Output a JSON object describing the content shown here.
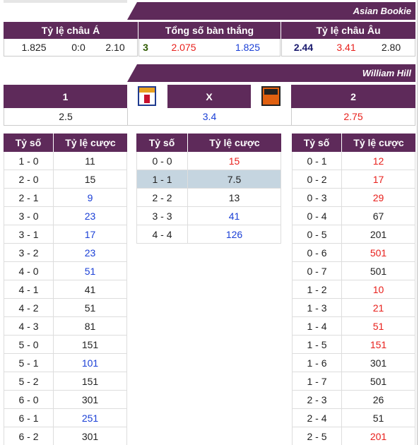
{
  "asian_bookie": {
    "title": "Asian Bookie",
    "headers": [
      "Tỷ lệ châu Á",
      "Tổng số bàn thắng",
      "Tỷ lệ châu Âu"
    ],
    "groups": [
      [
        {
          "text": "1.825"
        },
        {
          "text": "0:0"
        },
        {
          "text": "2.10"
        }
      ],
      [
        {
          "text": "3",
          "color": "#2e5a00",
          "bold": true
        },
        {
          "text": "2.075",
          "color": "#e8201c"
        },
        {
          "text": "1.825",
          "color": "#1a3fd6"
        }
      ],
      [
        {
          "text": "2.44",
          "color": "#1a1a6e",
          "bold": true
        },
        {
          "text": "3.41",
          "color": "#e8201c"
        },
        {
          "text": "2.80"
        }
      ]
    ]
  },
  "william_hill": {
    "title": "William Hill",
    "outcomes": [
      {
        "label": "1",
        "odds": "2.5"
      },
      {
        "label": "X",
        "odds": "3.4",
        "color": "#1a3fd6"
      },
      {
        "label": "2",
        "odds": "2.75",
        "color": "#e8201c"
      }
    ]
  },
  "score_tables": {
    "headers": [
      "Tỷ số",
      "Tỷ lệ cược"
    ],
    "tables": [
      {
        "rows": [
          {
            "score": "1 - 0",
            "odds": "11"
          },
          {
            "score": "2 - 0",
            "odds": "15"
          },
          {
            "score": "2 - 1",
            "odds": "9",
            "color": "#1a3fd6"
          },
          {
            "score": "3 - 0",
            "odds": "23",
            "color": "#1a3fd6"
          },
          {
            "score": "3 - 1",
            "odds": "17",
            "color": "#1a3fd6"
          },
          {
            "score": "3 - 2",
            "odds": "23",
            "color": "#1a3fd6"
          },
          {
            "score": "4 - 0",
            "odds": "51",
            "color": "#1a3fd6"
          },
          {
            "score": "4 - 1",
            "odds": "41"
          },
          {
            "score": "4 - 2",
            "odds": "51"
          },
          {
            "score": "4 - 3",
            "odds": "81"
          },
          {
            "score": "5 - 0",
            "odds": "151"
          },
          {
            "score": "5 - 1",
            "odds": "101",
            "color": "#1a3fd6"
          },
          {
            "score": "5 - 2",
            "odds": "151"
          },
          {
            "score": "6 - 0",
            "odds": "301"
          },
          {
            "score": "6 - 1",
            "odds": "251",
            "color": "#1a3fd6"
          },
          {
            "score": "6 - 2",
            "odds": "301"
          }
        ]
      },
      {
        "rows": [
          {
            "score": "0 - 0",
            "odds": "15",
            "color": "#e8201c"
          },
          {
            "score": "1 - 1",
            "odds": "7.5",
            "highlight": true
          },
          {
            "score": "2 - 2",
            "odds": "13"
          },
          {
            "score": "3 - 3",
            "odds": "41",
            "color": "#1a3fd6"
          },
          {
            "score": "4 - 4",
            "odds": "126",
            "color": "#1a3fd6"
          }
        ]
      },
      {
        "rows": [
          {
            "score": "0 - 1",
            "odds": "12",
            "color": "#e8201c"
          },
          {
            "score": "0 - 2",
            "odds": "17",
            "color": "#e8201c"
          },
          {
            "score": "0 - 3",
            "odds": "29",
            "color": "#e8201c"
          },
          {
            "score": "0 - 4",
            "odds": "67"
          },
          {
            "score": "0 - 5",
            "odds": "201"
          },
          {
            "score": "0 - 6",
            "odds": "501",
            "color": "#e8201c"
          },
          {
            "score": "0 - 7",
            "odds": "501"
          },
          {
            "score": "1 - 2",
            "odds": "10",
            "color": "#e8201c"
          },
          {
            "score": "1 - 3",
            "odds": "21",
            "color": "#e8201c"
          },
          {
            "score": "1 - 4",
            "odds": "51",
            "color": "#e8201c"
          },
          {
            "score": "1 - 5",
            "odds": "151",
            "color": "#e8201c"
          },
          {
            "score": "1 - 6",
            "odds": "301"
          },
          {
            "score": "1 - 7",
            "odds": "501"
          },
          {
            "score": "2 - 3",
            "odds": "26"
          },
          {
            "score": "2 - 4",
            "odds": "51"
          },
          {
            "score": "2 - 5",
            "odds": "201",
            "color": "#e8201c"
          }
        ]
      }
    ]
  }
}
